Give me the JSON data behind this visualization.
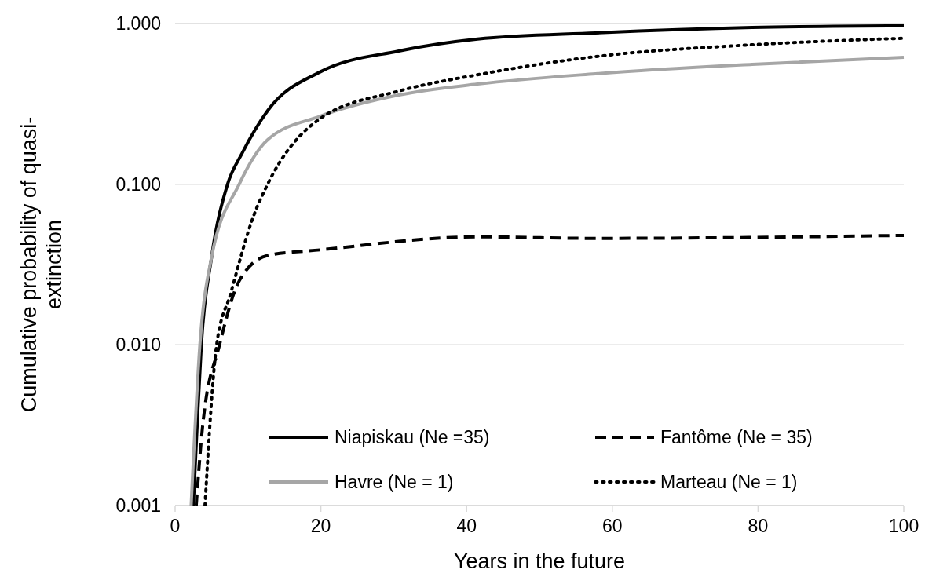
{
  "chart_data": {
    "type": "line",
    "xlabel": "Years in the future",
    "ylabel": "Cumulative probability of quasi-extinction",
    "log": "y",
    "grid": "y",
    "legend": "bottom",
    "marker": "none",
    "xlim": [
      0,
      100
    ],
    "xticks": [
      0,
      20,
      40,
      60,
      80,
      100
    ],
    "ylim": [
      0.001,
      1
    ],
    "yticks": [
      {
        "value": 0.001,
        "label": "0.001"
      },
      {
        "value": 0.01,
        "label": "0.010"
      },
      {
        "value": 0.1,
        "label": "0.100"
      },
      {
        "value": 1,
        "label": "1.000"
      }
    ],
    "series": [
      {
        "name": "Niapiskau (Ne =35)",
        "color": "#000000",
        "line_style": "solid",
        "x": [
          2.5,
          3,
          3.6,
          5,
          7.2,
          9.2,
          12.7,
          19.9,
          30.7,
          41.5,
          57.7,
          79.2,
          100
        ],
        "values": [
          0.001,
          0.003,
          0.01,
          0.035,
          0.1,
          0.156,
          0.287,
          0.5,
          0.675,
          0.8,
          0.874,
          0.945,
          0.97
        ]
      },
      {
        "name": "Fantôme (Ne = 35)",
        "color": "#000000",
        "line_style": "dashed",
        "x": [
          2.9,
          3.8,
          6.1,
          8.8,
          12.7,
          19.9,
          41.5,
          57.7,
          100
        ],
        "values": [
          0.001,
          0.0032,
          0.01,
          0.025,
          0.036,
          0.039,
          0.047,
          0.046,
          0.048
        ]
      },
      {
        "name": "Havre (Ne = 1)",
        "color": "#a6a6a6",
        "line_style": "solid",
        "x": [
          2.2,
          3.4,
          5,
          8.8,
          12.7,
          19.9,
          30.7,
          41.5,
          57.7,
          79.2,
          100
        ],
        "values": [
          0.001,
          0.01,
          0.035,
          0.1,
          0.189,
          0.265,
          0.359,
          0.42,
          0.487,
          0.557,
          0.616
        ]
      },
      {
        "name": "Marteau (Ne = 1)",
        "color": "#000000",
        "line_style": "dotted",
        "x": [
          4.1,
          5.7,
          7.6,
          10.8,
          12.7,
          19.9,
          30.7,
          41.5,
          57.7,
          79.2,
          100
        ],
        "values": [
          0.001,
          0.01,
          0.0207,
          0.064,
          0.1,
          0.256,
          0.38,
          0.48,
          0.623,
          0.738,
          0.81
        ]
      }
    ]
  }
}
